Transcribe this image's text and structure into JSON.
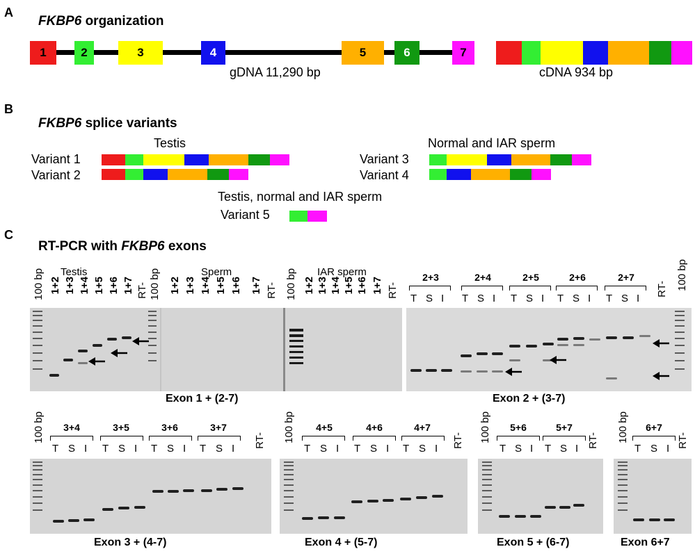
{
  "colors": {
    "exon1": "#ee1c1c",
    "exon2": "#33ee33",
    "exon3": "#ffff00",
    "exon4": "#1111ee",
    "exon5": "#ffb000",
    "exon6": "#119911",
    "exon7": "#ff11ff"
  },
  "panelA": {
    "letter": "A",
    "title_gene": "FKBP6",
    "title_rest": " organization",
    "exons": [
      "1",
      "2",
      "3",
      "4",
      "5",
      "6",
      "7"
    ],
    "gdna_label": "gDNA 11,290 bp",
    "cdna_label": "cDNA 934 bp"
  },
  "panelB": {
    "letter": "B",
    "title_gene": "FKBP6",
    "title_rest": " splice variants",
    "testis_label": "Testis",
    "sperm_label": "Normal and IAR  sperm",
    "shared_label": "Testis, normal and IAR sperm",
    "variants": [
      {
        "name": "Variant 1",
        "exons": [
          1,
          2,
          3,
          4,
          5,
          6,
          7
        ]
      },
      {
        "name": "Variant 2",
        "exons": [
          1,
          2,
          4,
          5,
          6,
          7
        ]
      },
      {
        "name": "Variant 3",
        "exons": [
          2,
          3,
          4,
          5,
          6,
          7
        ]
      },
      {
        "name": "Variant 4",
        "exons": [
          2,
          4,
          5,
          6,
          7
        ]
      },
      {
        "name": "Variant 5",
        "exons": [
          2,
          7
        ]
      }
    ]
  },
  "panelC": {
    "letter": "C",
    "title_pre": "RT-PCR with ",
    "title_gene": "FKBP6",
    "title_post": "  exons",
    "ladder_label": "100 bp",
    "rt_label": "RT-",
    "testis_header": "Testis",
    "sperm_header": "Sperm",
    "iar_header": "IAR sperm",
    "exon1_lanes": [
      "1+2",
      "1+3",
      "1+4",
      "1+5",
      "1+6",
      "1+7"
    ],
    "tsi": [
      "T",
      "S",
      "I"
    ],
    "gel1_caption": "Exon 1 + (2-7)",
    "gel2_groups": [
      "2+3",
      "2+4",
      "2+5",
      "2+6",
      "2+7"
    ],
    "gel2_caption": "Exon 2 + (3-7)",
    "gel3_groups": [
      "3+4",
      "3+5",
      "3+6",
      "3+7"
    ],
    "gel3_caption": "Exon 3 + (4-7)",
    "gel4_groups": [
      "4+5",
      "4+6",
      "4+7"
    ],
    "gel4_caption": "Exon 4 + (5-7)",
    "gel5_groups": [
      "5+6",
      "5+7"
    ],
    "gel5_caption": "Exon 5 + (6-7)",
    "gel6_groups": [
      "6+7"
    ],
    "gel6_caption": "Exon 6+7"
  }
}
